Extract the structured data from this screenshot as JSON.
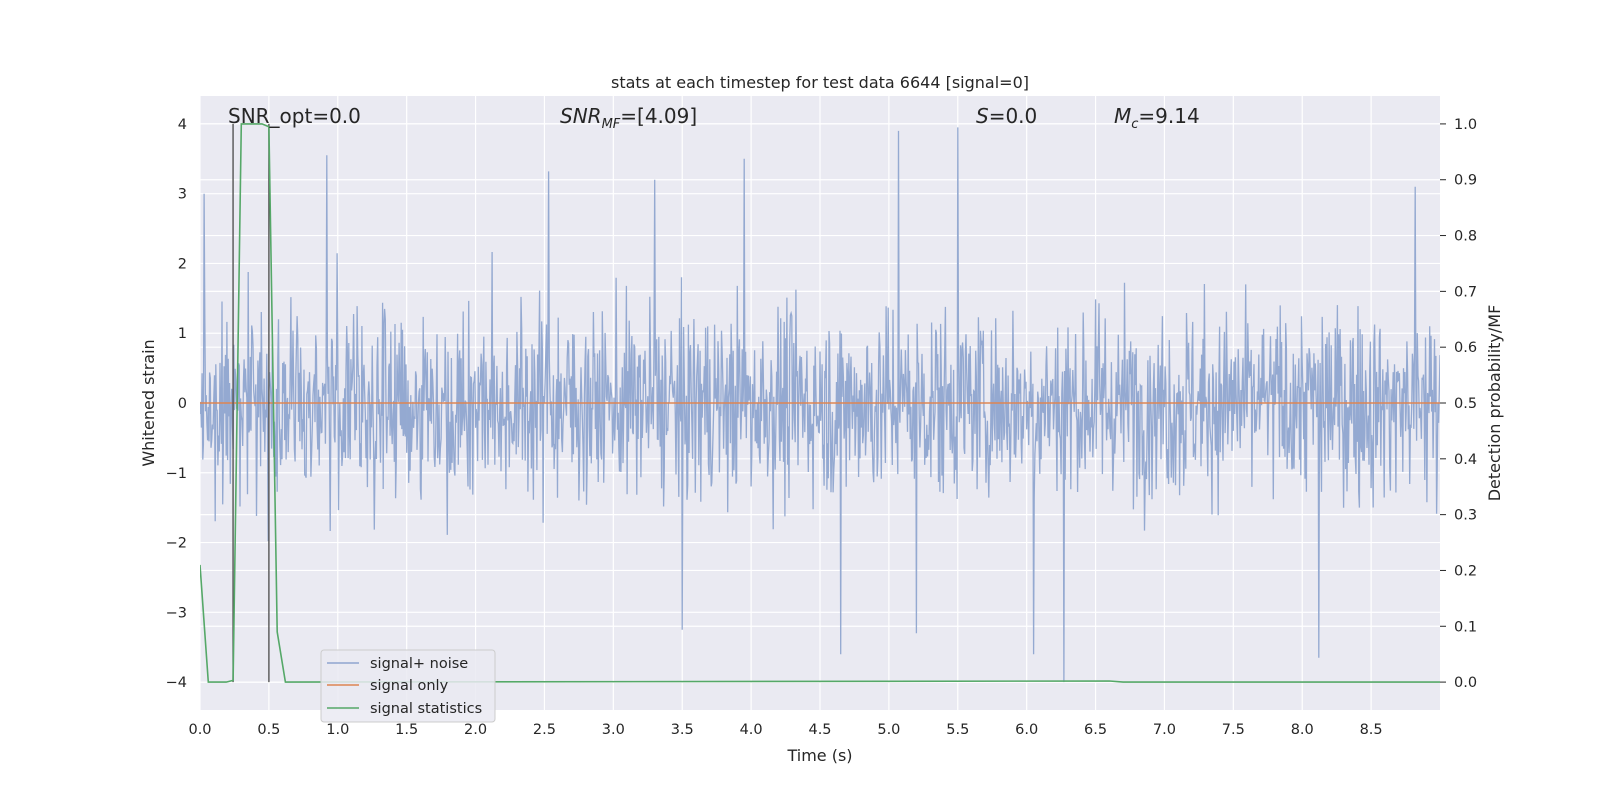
{
  "chart_data": {
    "type": "line",
    "title": "stats at each timestep for test data 6644 [signal=0]",
    "xlabel": "Time (s)",
    "ylabel": "Whitened strain",
    "y2label": "Detection probability/MF",
    "xlim": [
      0.0,
      9.0
    ],
    "ylim": [
      -4.4,
      4.4
    ],
    "y2lim": [
      -0.05,
      1.05
    ],
    "xticks": [
      "0.0",
      "0.5",
      "1.0",
      "1.5",
      "2.0",
      "2.5",
      "3.0",
      "3.5",
      "4.0",
      "4.5",
      "5.0",
      "5.5",
      "6.0",
      "6.5",
      "7.0",
      "7.5",
      "8.0",
      "8.5"
    ],
    "yticks": [
      "−4",
      "−3",
      "−2",
      "−1",
      "0",
      "1",
      "2",
      "3",
      "4"
    ],
    "y2ticks": [
      "0.0",
      "0.1",
      "0.2",
      "0.3",
      "0.4",
      "0.5",
      "0.6",
      "0.7",
      "0.8",
      "0.9",
      "1.0"
    ],
    "grid": true,
    "legend_position": "lower-left",
    "annotations": {
      "snr_opt": "SNR_opt=0.0",
      "snr_mf_sym": "SNR",
      "snr_mf_sub": "MF",
      "snr_mf_val": "=[4.09]",
      "s_sym": "S",
      "s_val": "=0.0",
      "mc_sym": "M",
      "mc_sub": "c",
      "mc_val": "=9.14"
    },
    "series": [
      {
        "name": "signal+ noise",
        "color": "#8fa5cf",
        "axis": "left",
        "description_values": "whitened noise, approx. range -3.7 to 4.0",
        "peaks": [
          {
            "x": 0.03,
            "y": 3.0
          },
          {
            "x": 0.92,
            "y": 3.55
          },
          {
            "x": 2.53,
            "y": 3.32
          },
          {
            "x": 3.3,
            "y": 3.2
          },
          {
            "x": 3.95,
            "y": 3.5
          },
          {
            "x": 5.07,
            "y": 3.9
          },
          {
            "x": 5.5,
            "y": 3.95
          },
          {
            "x": 8.12,
            "y": 3.15
          },
          {
            "x": 8.82,
            "y": 3.1
          }
        ],
        "troughs": [
          {
            "x": 3.5,
            "y": -3.25
          },
          {
            "x": 4.65,
            "y": -3.6
          },
          {
            "x": 5.2,
            "y": -3.3
          },
          {
            "x": 6.05,
            "y": -3.6
          },
          {
            "x": 6.27,
            "y": -4.0
          },
          {
            "x": 8.12,
            "y": -3.65
          }
        ]
      },
      {
        "name": "signal only",
        "color": "#dd8452",
        "axis": "left",
        "x": [
          0.0,
          9.0
        ],
        "values": [
          0.0,
          0.0
        ]
      },
      {
        "name": "signal statistics",
        "color": "#55a868",
        "axis": "right",
        "x": [
          0.0,
          0.06,
          0.19,
          0.24,
          0.3,
          0.45,
          0.5,
          0.56,
          0.62,
          6.6,
          6.7,
          9.0
        ],
        "values": [
          0.21,
          0.0,
          0.0,
          0.003,
          1.0,
          1.0,
          0.995,
          0.09,
          0.0,
          0.002,
          0.0,
          0.0
        ]
      }
    ],
    "vertical_markers": [
      {
        "x": 0.24,
        "ymin": -4.0,
        "ymax": 4.0,
        "color": "#555555"
      },
      {
        "x": 0.5,
        "ymin": -4.0,
        "ymax": 4.0,
        "color": "#555555"
      }
    ]
  }
}
